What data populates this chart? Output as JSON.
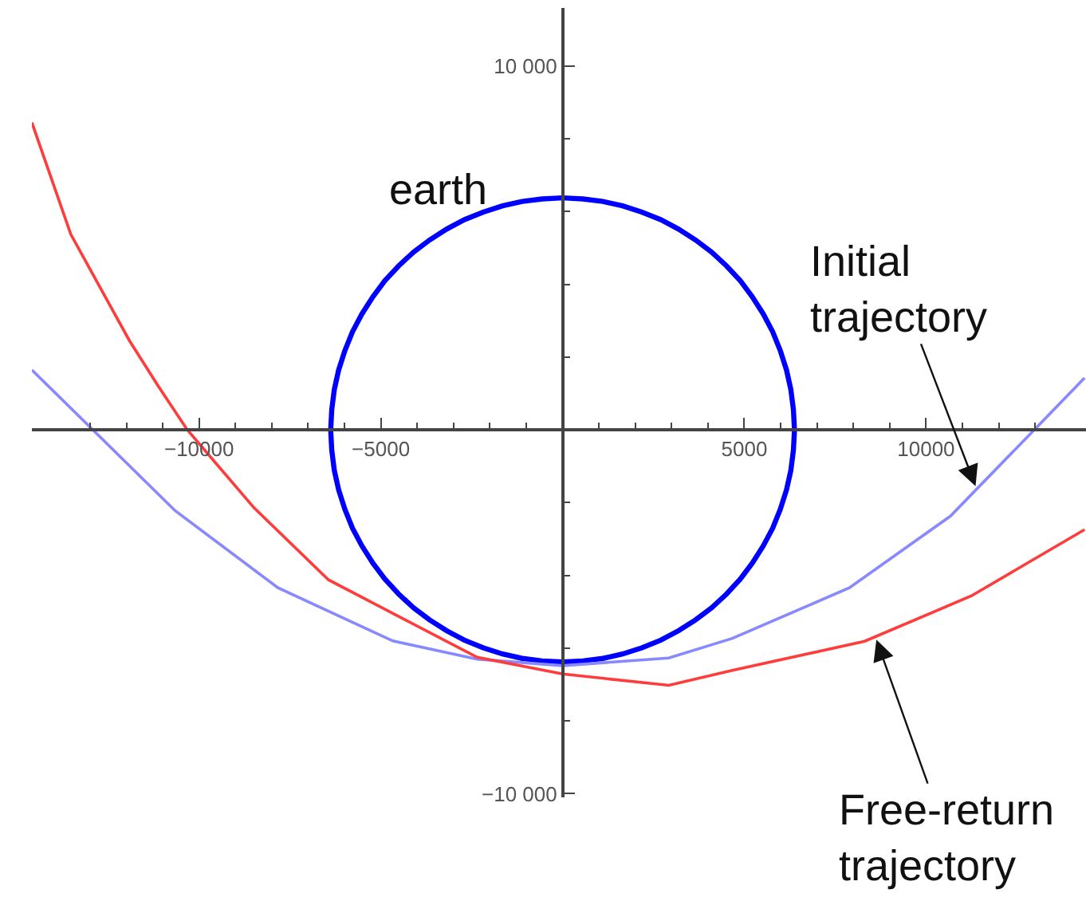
{
  "chart_data": {
    "type": "line",
    "xlim": [
      -14600,
      14400
    ],
    "ylim": [
      -10100,
      11600
    ],
    "xticks": [
      {
        "value": -13000,
        "label": null
      },
      {
        "value": -12000,
        "label": null
      },
      {
        "value": -11000,
        "label": null
      },
      {
        "value": -10000,
        "label": "−10000"
      },
      {
        "value": -9000,
        "label": null
      },
      {
        "value": -8000,
        "label": null
      },
      {
        "value": -7000,
        "label": null
      },
      {
        "value": -6000,
        "label": null
      },
      {
        "value": -5000,
        "label": "−5000"
      },
      {
        "value": -4000,
        "label": null
      },
      {
        "value": -3000,
        "label": null
      },
      {
        "value": -2000,
        "label": null
      },
      {
        "value": -1000,
        "label": null
      },
      {
        "value": 1000,
        "label": null
      },
      {
        "value": 2000,
        "label": null
      },
      {
        "value": 3000,
        "label": null
      },
      {
        "value": 4000,
        "label": null
      },
      5000,
      {
        "value": 6000,
        "label": null
      },
      {
        "value": 7000,
        "label": null
      },
      {
        "value": 8000,
        "label": null
      },
      {
        "value": 9000,
        "label": null
      },
      10000,
      {
        "value": 11000,
        "label": null
      },
      {
        "value": 12000,
        "label": null
      },
      {
        "value": 13000,
        "label": null
      }
    ],
    "yticks": [
      {
        "value": -10000,
        "label": "−10 000"
      },
      {
        "value": -8000,
        "label": null
      },
      {
        "value": -6000,
        "label": null
      },
      {
        "value": -4000,
        "label": null
      },
      {
        "value": -2000,
        "label": null
      },
      {
        "value": 2000,
        "label": null
      },
      {
        "value": 4000,
        "label": null
      },
      {
        "value": 6000,
        "label": null
      },
      {
        "value": 8000,
        "label": null
      },
      {
        "value": 10000,
        "label": "10 000"
      }
    ],
    "series": [
      {
        "name": "earth",
        "color": "#0000ff",
        "x": [
          6380,
          6350,
          6280,
          6160,
          5990,
          5780,
          5520,
          5220,
          4890,
          4510,
          4100,
          3660,
          3190,
          2700,
          2180,
          1650,
          1110,
          560,
          0,
          -560,
          -1110,
          -1650,
          -2180,
          -2700,
          -3190,
          -3660,
          -4100,
          -4510,
          -4890,
          -5220,
          -5520,
          -5780,
          -5990,
          -6160,
          -6280,
          -6350,
          -6380,
          -6350,
          -6280,
          -6160,
          -5990,
          -5780,
          -5520,
          -5220,
          -4890,
          -4510,
          -4100,
          -3660,
          -3190,
          -2700,
          -2180,
          -1650,
          -1110,
          -560,
          0,
          560,
          1110,
          1650,
          2180,
          2700,
          3190,
          3660,
          4100,
          4510,
          4890,
          5220,
          5520,
          5780,
          5990,
          6160,
          6280,
          6350,
          6380,
          6350
        ],
        "values": [
          0,
          560,
          1110,
          1650,
          2180,
          2700,
          3190,
          3660,
          4100,
          4510,
          4890,
          5220,
          5520,
          5780,
          5990,
          6160,
          6280,
          6350,
          6380,
          6350,
          6280,
          6160,
          5990,
          5780,
          5520,
          5220,
          4890,
          4510,
          4100,
          3660,
          3190,
          2700,
          2180,
          1650,
          1110,
          560,
          0,
          -560,
          -1110,
          -1650,
          -2180,
          -2700,
          -3190,
          -3660,
          -4100,
          -4510,
          -4890,
          -5220,
          -5520,
          -5780,
          -5990,
          -6160,
          -6280,
          -6350,
          -6380,
          -6350,
          -6280,
          -6160,
          -5990,
          -5780,
          -5520,
          -5220,
          -4890,
          -4510,
          -4100,
          -3660,
          -3190,
          -2700,
          -2180,
          -1650,
          -1110,
          -560,
          0,
          560
        ]
      },
      {
        "name": "Initial trajectory",
        "color": "#8888ff",
        "x": [
          -14600,
          -10660,
          -7830,
          -4670,
          -2350,
          0,
          2920,
          4670,
          7890,
          10670,
          13080,
          14360
        ],
        "values": [
          1650,
          -2220,
          -4340,
          -5800,
          -6300,
          -6480,
          -6270,
          -5730,
          -4340,
          -2370,
          110,
          1430
        ]
      },
      {
        "name": "Free-return trajectory",
        "color": "#ff3c3c",
        "x": [
          -14600,
          -13530,
          -11920,
          -11120,
          -10330,
          -8490,
          -6440,
          -4540,
          -2350,
          0,
          2920,
          4670,
          8310,
          11250,
          14360
        ],
        "values": [
          8450,
          5380,
          2460,
          1200,
          10,
          -2140,
          -4120,
          -5110,
          -6250,
          -6710,
          -7020,
          -6610,
          -5810,
          -4560,
          -2740
        ]
      }
    ]
  }
}
